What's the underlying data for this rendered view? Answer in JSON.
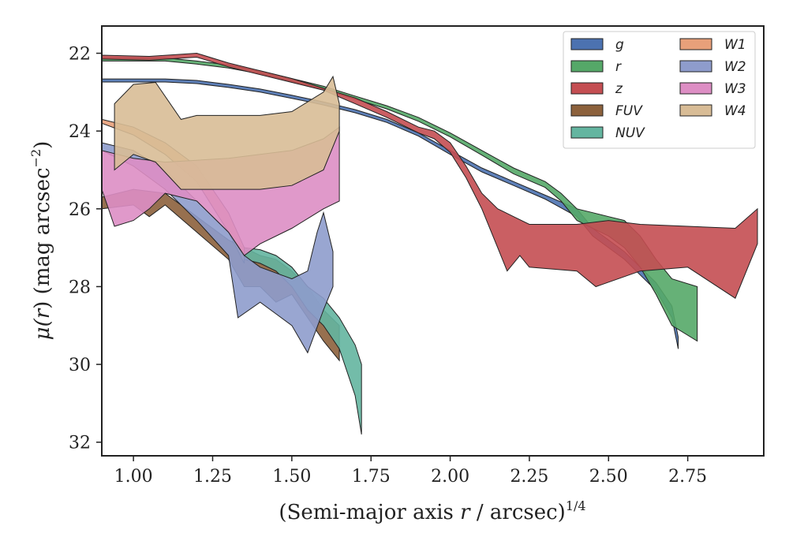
{
  "chart_data": {
    "type": "area",
    "xlabel_main": "(Semi-major axis ",
    "xlabel_var": "r",
    "xlabel_rest": " / arcsec)",
    "xlabel_sup": "1/4",
    "ylabel_main": "μ(",
    "ylabel_var": "r",
    "ylabel_rest": ") (mag arcsec",
    "ylabel_sup": "−2",
    "ylabel_close": ")",
    "xlim": [
      0.9,
      2.99
    ],
    "ylim": [
      32.35,
      21.3
    ],
    "y_inverted": true,
    "x_ticks": [
      "1.00",
      "1.25",
      "1.50",
      "1.75",
      "2.00",
      "2.25",
      "2.50",
      "2.75"
    ],
    "y_ticks": [
      "22",
      "24",
      "26",
      "28",
      "30",
      "32"
    ],
    "legend_position": "upper-right",
    "legend_columns": 2,
    "series": [
      {
        "name": "g",
        "color": "#4c72b0",
        "upper": [
          [
            0.9,
            22.66
          ],
          [
            1.1,
            22.66
          ],
          [
            1.2,
            22.7
          ],
          [
            1.3,
            22.8
          ],
          [
            1.4,
            22.92
          ],
          [
            1.5,
            23.08
          ],
          [
            1.6,
            23.25
          ],
          [
            1.7,
            23.45
          ],
          [
            1.8,
            23.7
          ],
          [
            1.9,
            24.05
          ],
          [
            2.0,
            24.5
          ],
          [
            2.1,
            24.95
          ],
          [
            2.2,
            25.3
          ],
          [
            2.3,
            25.65
          ],
          [
            2.4,
            26.0
          ],
          [
            2.45,
            26.5
          ],
          [
            2.5,
            26.8
          ],
          [
            2.55,
            27.1
          ],
          [
            2.6,
            27.5
          ],
          [
            2.65,
            27.9
          ],
          [
            2.7,
            28.5
          ],
          [
            2.72,
            29.3
          ]
        ],
        "lower": [
          [
            0.9,
            22.74
          ],
          [
            1.1,
            22.74
          ],
          [
            1.2,
            22.78
          ],
          [
            1.3,
            22.88
          ],
          [
            1.4,
            23.0
          ],
          [
            1.5,
            23.16
          ],
          [
            1.6,
            23.33
          ],
          [
            1.7,
            23.53
          ],
          [
            1.8,
            23.78
          ],
          [
            1.9,
            24.13
          ],
          [
            2.0,
            24.6
          ],
          [
            2.1,
            25.05
          ],
          [
            2.2,
            25.4
          ],
          [
            2.3,
            25.75
          ],
          [
            2.4,
            26.2
          ],
          [
            2.45,
            26.7
          ],
          [
            2.5,
            27.0
          ],
          [
            2.55,
            27.3
          ],
          [
            2.6,
            27.7
          ],
          [
            2.65,
            28.1
          ],
          [
            2.7,
            28.8
          ],
          [
            2.72,
            29.6
          ]
        ]
      },
      {
        "name": "r",
        "color": "#55a868",
        "upper": [
          [
            0.9,
            22.12
          ],
          [
            1.1,
            22.12
          ],
          [
            1.2,
            22.2
          ],
          [
            1.3,
            22.3
          ],
          [
            1.4,
            22.45
          ],
          [
            1.5,
            22.65
          ],
          [
            1.6,
            22.85
          ],
          [
            1.7,
            23.1
          ],
          [
            1.8,
            23.35
          ],
          [
            1.9,
            23.65
          ],
          [
            2.0,
            24.05
          ],
          [
            2.1,
            24.5
          ],
          [
            2.2,
            24.95
          ],
          [
            2.3,
            25.3
          ],
          [
            2.35,
            25.6
          ],
          [
            2.4,
            26.0
          ],
          [
            2.45,
            26.1
          ],
          [
            2.5,
            26.2
          ],
          [
            2.55,
            26.3
          ],
          [
            2.6,
            26.7
          ],
          [
            2.65,
            27.3
          ],
          [
            2.7,
            27.8
          ],
          [
            2.78,
            28.0
          ]
        ],
        "lower": [
          [
            0.9,
            22.2
          ],
          [
            1.1,
            22.2
          ],
          [
            1.2,
            22.28
          ],
          [
            1.3,
            22.38
          ],
          [
            1.4,
            22.53
          ],
          [
            1.5,
            22.73
          ],
          [
            1.6,
            22.93
          ],
          [
            1.7,
            23.18
          ],
          [
            1.8,
            23.43
          ],
          [
            1.9,
            23.75
          ],
          [
            2.0,
            24.15
          ],
          [
            2.1,
            24.62
          ],
          [
            2.2,
            25.1
          ],
          [
            2.3,
            25.45
          ],
          [
            2.35,
            25.8
          ],
          [
            2.4,
            26.3
          ],
          [
            2.45,
            26.5
          ],
          [
            2.5,
            26.7
          ],
          [
            2.55,
            27.0
          ],
          [
            2.6,
            27.5
          ],
          [
            2.65,
            28.2
          ],
          [
            2.7,
            29.0
          ],
          [
            2.78,
            29.4
          ]
        ]
      },
      {
        "name": "z",
        "color": "#c44e52",
        "upper": [
          [
            0.9,
            22.05
          ],
          [
            1.05,
            22.08
          ],
          [
            1.2,
            22.0
          ],
          [
            1.3,
            22.25
          ],
          [
            1.4,
            22.45
          ],
          [
            1.5,
            22.65
          ],
          [
            1.6,
            22.9
          ],
          [
            1.7,
            23.15
          ],
          [
            1.8,
            23.5
          ],
          [
            1.9,
            23.9
          ],
          [
            1.95,
            24.0
          ],
          [
            2.0,
            24.3
          ],
          [
            2.05,
            24.9
          ],
          [
            2.1,
            25.6
          ],
          [
            2.15,
            26.0
          ],
          [
            2.2,
            26.2
          ],
          [
            2.25,
            26.4
          ],
          [
            2.4,
            26.4
          ],
          [
            2.5,
            26.3
          ],
          [
            2.6,
            26.4
          ],
          [
            2.9,
            26.5
          ],
          [
            2.97,
            26.0
          ]
        ],
        "lower": [
          [
            0.9,
            22.15
          ],
          [
            1.05,
            22.18
          ],
          [
            1.2,
            22.1
          ],
          [
            1.3,
            22.35
          ],
          [
            1.4,
            22.55
          ],
          [
            1.5,
            22.75
          ],
          [
            1.6,
            22.95
          ],
          [
            1.7,
            23.3
          ],
          [
            1.8,
            23.65
          ],
          [
            1.9,
            24.05
          ],
          [
            1.95,
            24.2
          ],
          [
            2.0,
            24.55
          ],
          [
            2.05,
            25.2
          ],
          [
            2.1,
            26.0
          ],
          [
            2.15,
            27.0
          ],
          [
            2.18,
            27.6
          ],
          [
            2.22,
            27.2
          ],
          [
            2.25,
            27.5
          ],
          [
            2.4,
            27.6
          ],
          [
            2.46,
            28.0
          ],
          [
            2.6,
            27.6
          ],
          [
            2.75,
            27.5
          ],
          [
            2.9,
            28.3
          ],
          [
            2.97,
            26.9
          ]
        ]
      },
      {
        "name": "FUV",
        "color": "#8c613c",
        "upper": [
          [
            0.9,
            25.7
          ],
          [
            1.0,
            25.5
          ],
          [
            1.1,
            25.6
          ],
          [
            1.2,
            26.2
          ],
          [
            1.3,
            26.8
          ],
          [
            1.4,
            27.2
          ],
          [
            1.45,
            27.3
          ],
          [
            1.5,
            27.6
          ],
          [
            1.55,
            28.0
          ],
          [
            1.6,
            28.6
          ],
          [
            1.65,
            29.0
          ]
        ],
        "lower": [
          [
            0.9,
            26.0
          ],
          [
            1.0,
            25.9
          ],
          [
            1.05,
            26.2
          ],
          [
            1.1,
            25.9
          ],
          [
            1.2,
            26.6
          ],
          [
            1.3,
            27.3
          ],
          [
            1.35,
            28.0
          ],
          [
            1.4,
            28.0
          ],
          [
            1.45,
            28.4
          ],
          [
            1.5,
            28.2
          ],
          [
            1.55,
            28.8
          ],
          [
            1.6,
            29.4
          ],
          [
            1.65,
            29.9
          ]
        ]
      },
      {
        "name": "NUV",
        "color": "#64b5a0",
        "upper": [
          [
            1.35,
            27.0
          ],
          [
            1.4,
            27.05
          ],
          [
            1.45,
            27.2
          ],
          [
            1.5,
            27.5
          ],
          [
            1.55,
            28.0
          ],
          [
            1.6,
            28.3
          ],
          [
            1.65,
            28.8
          ],
          [
            1.7,
            29.5
          ],
          [
            1.72,
            30.0
          ]
        ],
        "lower": [
          [
            1.35,
            27.3
          ],
          [
            1.4,
            27.4
          ],
          [
            1.45,
            27.6
          ],
          [
            1.5,
            28.0
          ],
          [
            1.55,
            28.6
          ],
          [
            1.6,
            29.0
          ],
          [
            1.65,
            29.6
          ],
          [
            1.7,
            30.8
          ],
          [
            1.72,
            31.8
          ]
        ]
      },
      {
        "name": "W1",
        "color": "#e8a07a",
        "upper": [
          [
            0.9,
            23.7
          ],
          [
            1.0,
            23.9
          ],
          [
            1.1,
            24.3
          ],
          [
            1.2,
            24.9
          ],
          [
            1.3,
            26.1
          ],
          [
            1.35,
            27.0
          ]
        ],
        "lower": [
          [
            0.9,
            23.8
          ],
          [
            1.0,
            24.1
          ],
          [
            1.1,
            24.6
          ],
          [
            1.2,
            25.3
          ],
          [
            1.3,
            26.6
          ],
          [
            1.35,
            27.4
          ]
        ]
      },
      {
        "name": "W2",
        "color": "#8e9ccc",
        "upper": [
          [
            0.9,
            24.3
          ],
          [
            1.0,
            24.5
          ],
          [
            1.1,
            25.0
          ],
          [
            1.2,
            25.8
          ],
          [
            1.3,
            26.6
          ],
          [
            1.35,
            27.2
          ],
          [
            1.4,
            27.5
          ],
          [
            1.5,
            27.8
          ],
          [
            1.55,
            27.6
          ],
          [
            1.58,
            26.6
          ],
          [
            1.6,
            26.1
          ],
          [
            1.63,
            27.1
          ]
        ],
        "lower": [
          [
            0.9,
            24.5
          ],
          [
            1.0,
            24.9
          ],
          [
            1.1,
            25.5
          ],
          [
            1.2,
            26.3
          ],
          [
            1.3,
            27.2
          ],
          [
            1.33,
            28.8
          ],
          [
            1.4,
            28.4
          ],
          [
            1.45,
            28.7
          ],
          [
            1.5,
            29.0
          ],
          [
            1.55,
            29.7
          ],
          [
            1.6,
            28.6
          ],
          [
            1.63,
            28.0
          ]
        ]
      },
      {
        "name": "W3",
        "color": "#dd8ec4",
        "upper": [
          [
            0.9,
            24.5
          ],
          [
            1.0,
            24.7
          ],
          [
            1.1,
            24.8
          ],
          [
            1.2,
            24.75
          ],
          [
            1.3,
            24.7
          ],
          [
            1.4,
            24.6
          ],
          [
            1.5,
            24.5
          ],
          [
            1.6,
            24.2
          ],
          [
            1.65,
            23.9
          ]
        ],
        "lower": [
          [
            0.9,
            25.5
          ],
          [
            0.94,
            26.45
          ],
          [
            1.0,
            26.3
          ],
          [
            1.05,
            26.0
          ],
          [
            1.1,
            25.6
          ],
          [
            1.2,
            25.8
          ],
          [
            1.3,
            26.6
          ],
          [
            1.35,
            27.2
          ],
          [
            1.4,
            26.9
          ],
          [
            1.5,
            26.5
          ],
          [
            1.6,
            26.0
          ],
          [
            1.65,
            25.8
          ]
        ]
      },
      {
        "name": "W4",
        "color": "#d8bc96",
        "upper": [
          [
            0.94,
            23.3
          ],
          [
            1.0,
            22.8
          ],
          [
            1.07,
            22.75
          ],
          [
            1.15,
            23.7
          ],
          [
            1.2,
            23.6
          ],
          [
            1.3,
            23.6
          ],
          [
            1.4,
            23.6
          ],
          [
            1.5,
            23.5
          ],
          [
            1.6,
            23.0
          ],
          [
            1.63,
            22.6
          ],
          [
            1.65,
            23.3
          ]
        ],
        "lower": [
          [
            0.94,
            25.0
          ],
          [
            1.0,
            24.6
          ],
          [
            1.07,
            24.8
          ],
          [
            1.15,
            25.5
          ],
          [
            1.2,
            25.5
          ],
          [
            1.3,
            25.5
          ],
          [
            1.4,
            25.5
          ],
          [
            1.5,
            25.4
          ],
          [
            1.6,
            25.0
          ],
          [
            1.65,
            24.0
          ]
        ]
      }
    ]
  }
}
